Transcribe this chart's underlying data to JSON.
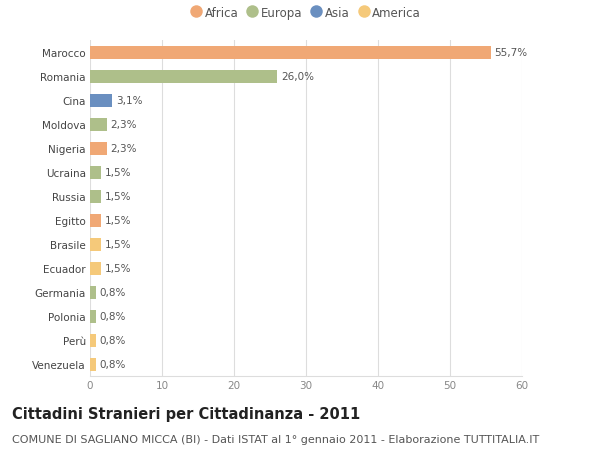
{
  "categories": [
    "Marocco",
    "Romania",
    "Cina",
    "Moldova",
    "Nigeria",
    "Ucraina",
    "Russia",
    "Egitto",
    "Brasile",
    "Ecuador",
    "Germania",
    "Polonia",
    "Perù",
    "Venezuela"
  ],
  "values": [
    55.7,
    26.0,
    3.1,
    2.3,
    2.3,
    1.5,
    1.5,
    1.5,
    1.5,
    1.5,
    0.8,
    0.8,
    0.8,
    0.8
  ],
  "labels": [
    "55,7%",
    "26,0%",
    "3,1%",
    "2,3%",
    "2,3%",
    "1,5%",
    "1,5%",
    "1,5%",
    "1,5%",
    "1,5%",
    "0,8%",
    "0,8%",
    "0,8%",
    "0,8%"
  ],
  "colors": [
    "#F0A875",
    "#AEBF8A",
    "#6A8FC0",
    "#AEBF8A",
    "#F0A875",
    "#AEBF8A",
    "#AEBF8A",
    "#F0A875",
    "#F5C97A",
    "#F5C97A",
    "#AEBF8A",
    "#AEBF8A",
    "#F5C97A",
    "#F5C97A"
  ],
  "legend_labels": [
    "Africa",
    "Europa",
    "Asia",
    "America"
  ],
  "legend_colors": [
    "#F0A875",
    "#AEBF8A",
    "#6A8FC0",
    "#F5C97A"
  ],
  "title": "Cittadini Stranieri per Cittadinanza - 2011",
  "subtitle": "COMUNE DI SAGLIANO MICCA (BI) - Dati ISTAT al 1° gennaio 2011 - Elaborazione TUTTITALIA.IT",
  "xlim": [
    0,
    60
  ],
  "xticks": [
    0,
    10,
    20,
    30,
    40,
    50,
    60
  ],
  "bg_color": "#ffffff",
  "grid_color": "#dddddd",
  "bar_height": 0.55,
  "title_fontsize": 10.5,
  "subtitle_fontsize": 8,
  "label_fontsize": 7.5,
  "tick_fontsize": 7.5,
  "legend_fontsize": 8.5
}
